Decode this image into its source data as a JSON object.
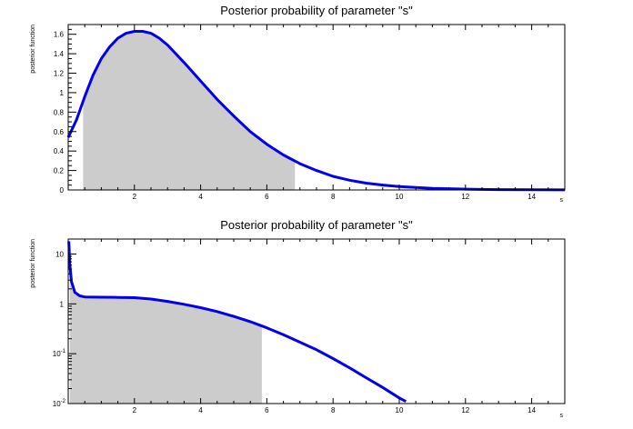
{
  "chart_data": [
    {
      "type": "line",
      "title": "Posterior probability of parameter \"s\"",
      "xlabel": "s",
      "ylabel": "posterior function",
      "xlim": [
        0,
        15
      ],
      "ylim": [
        0,
        1.7
      ],
      "yscale": "linear",
      "x_ticks": [
        "2",
        "4",
        "6",
        "8",
        "10",
        "12",
        "14"
      ],
      "y_ticks": [
        "0",
        "0.2",
        "0.4",
        "0.6",
        "0.8",
        "1",
        "1.2",
        "1.4",
        "1.6"
      ],
      "shaded_interval": [
        0.45,
        6.85
      ],
      "line_color": "#0000ee",
      "fill_color": "#cccccc",
      "series": [
        {
          "x": [
            0,
            0.25,
            0.5,
            0.75,
            1.0,
            1.25,
            1.5,
            1.75,
            2.0,
            2.25,
            2.5,
            2.75,
            3.0,
            3.5,
            4.0,
            4.5,
            5.0,
            5.5,
            6.0,
            6.5,
            7.0,
            7.5,
            8.0,
            8.5,
            9.0,
            9.5,
            10.0,
            11.0,
            12.0,
            13.0,
            14.0,
            15.0
          ],
          "y": [
            0.54,
            0.72,
            0.96,
            1.18,
            1.35,
            1.47,
            1.56,
            1.61,
            1.63,
            1.63,
            1.61,
            1.56,
            1.49,
            1.31,
            1.12,
            0.93,
            0.76,
            0.6,
            0.47,
            0.36,
            0.27,
            0.2,
            0.14,
            0.1,
            0.07,
            0.05,
            0.035,
            0.017,
            0.008,
            0.004,
            0.002,
            0.001
          ]
        }
      ]
    },
    {
      "type": "line",
      "title": "Posterior probability of parameter \"s\"",
      "xlabel": "s",
      "ylabel": "posterior function",
      "xlim": [
        0,
        15
      ],
      "ylim": [
        0.01,
        20
      ],
      "yscale": "log",
      "x_ticks": [
        "2",
        "4",
        "6",
        "8",
        "10",
        "12",
        "14"
      ],
      "y_ticks": [
        "10",
        "1",
        "10^-1",
        "10^-2"
      ],
      "shaded_interval": [
        0.05,
        5.85
      ],
      "line_color": "#0000ee",
      "fill_color": "#cccccc",
      "series": [
        {
          "x": [
            0.02,
            0.05,
            0.1,
            0.2,
            0.35,
            0.5,
            1.0,
            1.5,
            2.0,
            2.5,
            3.0,
            3.5,
            4.0,
            4.5,
            5.0,
            5.5,
            6.0,
            6.5,
            7.0,
            7.5,
            8.0,
            8.5,
            9.0,
            9.5,
            10.0,
            10.2
          ],
          "y": [
            18,
            6.0,
            2.8,
            1.7,
            1.45,
            1.38,
            1.36,
            1.35,
            1.33,
            1.25,
            1.12,
            0.98,
            0.84,
            0.7,
            0.56,
            0.44,
            0.33,
            0.24,
            0.17,
            0.12,
            0.08,
            0.052,
            0.033,
            0.021,
            0.013,
            0.011
          ]
        }
      ]
    }
  ]
}
